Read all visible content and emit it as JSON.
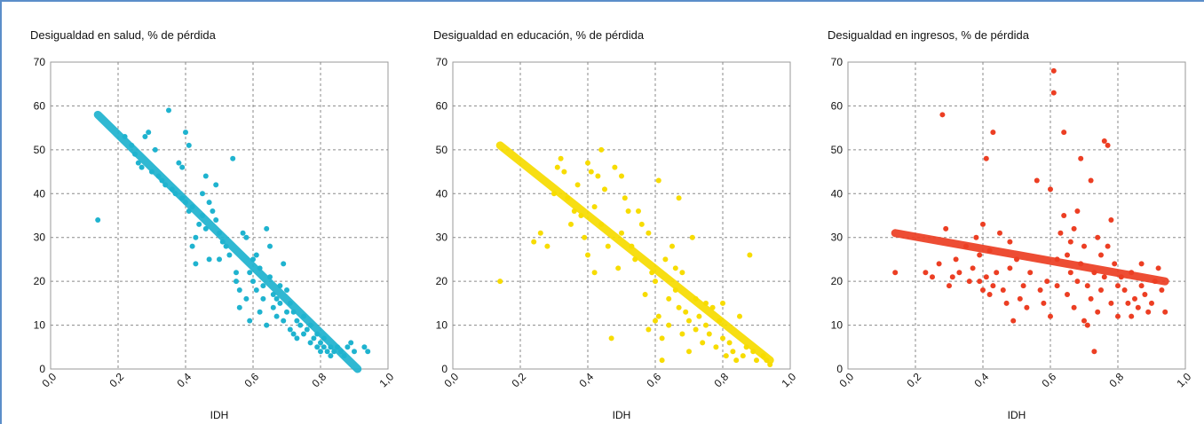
{
  "colors": {
    "health": "#1fb3cf",
    "education": "#f7dc00",
    "income": "#ec3e23",
    "grid": "#8a8a8a"
  },
  "chart_data": [
    {
      "type": "scatter",
      "title": "Desigualdad en salud, % de pérdida",
      "xlabel": "IDH",
      "ylabel": "",
      "xlim": [
        0,
        1
      ],
      "ylim": [
        0,
        70
      ],
      "xticks": [
        "0,0",
        "0,2",
        "0,4",
        "0,6",
        "0,8",
        "1,0"
      ],
      "yticks": [
        "0",
        "10",
        "20",
        "30",
        "40",
        "50",
        "60",
        "70"
      ],
      "color": "#1fb3cf",
      "trend": [
        [
          0.14,
          58
        ],
        [
          0.91,
          0
        ]
      ],
      "points": [
        [
          0.14,
          34
        ],
        [
          0.22,
          53
        ],
        [
          0.24,
          51
        ],
        [
          0.25,
          49
        ],
        [
          0.26,
          47
        ],
        [
          0.27,
          46
        ],
        [
          0.28,
          53
        ],
        [
          0.29,
          54
        ],
        [
          0.3,
          45
        ],
        [
          0.31,
          50
        ],
        [
          0.32,
          44
        ],
        [
          0.33,
          43
        ],
        [
          0.34,
          42
        ],
        [
          0.35,
          59
        ],
        [
          0.36,
          41
        ],
        [
          0.37,
          40
        ],
        [
          0.38,
          47
        ],
        [
          0.39,
          46
        ],
        [
          0.39,
          39
        ],
        [
          0.4,
          54
        ],
        [
          0.4,
          38
        ],
        [
          0.41,
          36
        ],
        [
          0.41,
          51
        ],
        [
          0.42,
          37
        ],
        [
          0.42,
          28
        ],
        [
          0.43,
          24
        ],
        [
          0.43,
          30
        ],
        [
          0.44,
          33
        ],
        [
          0.45,
          35
        ],
        [
          0.45,
          40
        ],
        [
          0.46,
          44
        ],
        [
          0.46,
          32
        ],
        [
          0.47,
          25
        ],
        [
          0.47,
          38
        ],
        [
          0.48,
          36
        ],
        [
          0.49,
          42
        ],
        [
          0.49,
          34
        ],
        [
          0.5,
          31
        ],
        [
          0.5,
          25
        ],
        [
          0.51,
          29
        ],
        [
          0.52,
          28
        ],
        [
          0.53,
          26
        ],
        [
          0.54,
          48
        ],
        [
          0.55,
          20
        ],
        [
          0.55,
          22
        ],
        [
          0.56,
          18
        ],
        [
          0.56,
          14
        ],
        [
          0.57,
          31
        ],
        [
          0.58,
          30
        ],
        [
          0.58,
          16
        ],
        [
          0.59,
          11
        ],
        [
          0.59,
          22
        ],
        [
          0.6,
          25
        ],
        [
          0.6,
          20
        ],
        [
          0.61,
          26
        ],
        [
          0.61,
          18
        ],
        [
          0.62,
          23
        ],
        [
          0.62,
          13
        ],
        [
          0.63,
          19
        ],
        [
          0.63,
          16
        ],
        [
          0.64,
          32
        ],
        [
          0.64,
          10
        ],
        [
          0.65,
          28
        ],
        [
          0.65,
          21
        ],
        [
          0.66,
          17
        ],
        [
          0.66,
          14
        ],
        [
          0.67,
          16
        ],
        [
          0.67,
          12
        ],
        [
          0.68,
          15
        ],
        [
          0.68,
          19
        ],
        [
          0.69,
          11
        ],
        [
          0.69,
          24
        ],
        [
          0.7,
          13
        ],
        [
          0.7,
          18
        ],
        [
          0.71,
          9
        ],
        [
          0.71,
          15
        ],
        [
          0.72,
          8
        ],
        [
          0.72,
          13
        ],
        [
          0.73,
          11
        ],
        [
          0.73,
          7
        ],
        [
          0.74,
          10
        ],
        [
          0.75,
          12
        ],
        [
          0.75,
          8
        ],
        [
          0.76,
          9
        ],
        [
          0.77,
          6
        ],
        [
          0.77,
          10
        ],
        [
          0.78,
          7
        ],
        [
          0.79,
          5
        ],
        [
          0.79,
          8
        ],
        [
          0.8,
          6
        ],
        [
          0.8,
          4
        ],
        [
          0.81,
          7
        ],
        [
          0.81,
          5
        ],
        [
          0.82,
          4
        ],
        [
          0.83,
          5
        ],
        [
          0.83,
          3
        ],
        [
          0.84,
          4
        ],
        [
          0.85,
          5
        ],
        [
          0.86,
          4
        ],
        [
          0.87,
          3
        ],
        [
          0.88,
          5
        ],
        [
          0.89,
          6
        ],
        [
          0.9,
          4
        ],
        [
          0.93,
          5
        ],
        [
          0.94,
          4
        ]
      ]
    },
    {
      "type": "scatter",
      "title": "Desigualdad en educación, % de pérdida",
      "xlabel": "IDH",
      "ylabel": "",
      "xlim": [
        0,
        1
      ],
      "ylim": [
        0,
        70
      ],
      "xticks": [
        "0,0",
        "0,2",
        "0,4",
        "0,6",
        "0,8",
        "1,0"
      ],
      "yticks": [
        "0",
        "10",
        "20",
        "30",
        "40",
        "50",
        "60",
        "70"
      ],
      "color": "#f7dc00",
      "trend": [
        [
          0.14,
          51
        ],
        [
          0.94,
          2
        ]
      ],
      "points": [
        [
          0.14,
          20
        ],
        [
          0.24,
          29
        ],
        [
          0.26,
          31
        ],
        [
          0.28,
          28
        ],
        [
          0.3,
          40
        ],
        [
          0.31,
          46
        ],
        [
          0.32,
          48
        ],
        [
          0.33,
          45
        ],
        [
          0.34,
          39
        ],
        [
          0.35,
          33
        ],
        [
          0.36,
          36
        ],
        [
          0.37,
          42
        ],
        [
          0.38,
          35
        ],
        [
          0.39,
          30
        ],
        [
          0.4,
          47
        ],
        [
          0.4,
          26
        ],
        [
          0.41,
          45
        ],
        [
          0.42,
          37
        ],
        [
          0.42,
          22
        ],
        [
          0.43,
          44
        ],
        [
          0.44,
          50
        ],
        [
          0.44,
          33
        ],
        [
          0.45,
          41
        ],
        [
          0.46,
          28
        ],
        [
          0.47,
          7
        ],
        [
          0.48,
          46
        ],
        [
          0.49,
          23
        ],
        [
          0.5,
          44
        ],
        [
          0.5,
          31
        ],
        [
          0.51,
          39
        ],
        [
          0.52,
          36
        ],
        [
          0.53,
          28
        ],
        [
          0.54,
          25
        ],
        [
          0.55,
          36
        ],
        [
          0.56,
          33
        ],
        [
          0.57,
          17
        ],
        [
          0.58,
          31
        ],
        [
          0.58,
          9
        ],
        [
          0.59,
          22
        ],
        [
          0.6,
          20
        ],
        [
          0.6,
          11
        ],
        [
          0.61,
          43
        ],
        [
          0.61,
          12
        ],
        [
          0.62,
          7
        ],
        [
          0.62,
          2
        ],
        [
          0.63,
          25
        ],
        [
          0.64,
          16
        ],
        [
          0.64,
          10
        ],
        [
          0.65,
          28
        ],
        [
          0.66,
          23
        ],
        [
          0.66,
          18
        ],
        [
          0.67,
          14
        ],
        [
          0.67,
          39
        ],
        [
          0.68,
          8
        ],
        [
          0.68,
          22
        ],
        [
          0.69,
          13
        ],
        [
          0.7,
          11
        ],
        [
          0.7,
          4
        ],
        [
          0.71,
          30
        ],
        [
          0.72,
          16
        ],
        [
          0.72,
          9
        ],
        [
          0.73,
          12
        ],
        [
          0.74,
          6
        ],
        [
          0.75,
          15
        ],
        [
          0.75,
          10
        ],
        [
          0.76,
          8
        ],
        [
          0.77,
          14
        ],
        [
          0.78,
          5
        ],
        [
          0.79,
          11
        ],
        [
          0.8,
          7
        ],
        [
          0.8,
          15
        ],
        [
          0.81,
          3
        ],
        [
          0.82,
          6
        ],
        [
          0.83,
          4
        ],
        [
          0.84,
          2
        ],
        [
          0.85,
          12
        ],
        [
          0.86,
          3
        ],
        [
          0.87,
          5
        ],
        [
          0.88,
          26
        ],
        [
          0.89,
          4
        ],
        [
          0.9,
          2
        ],
        [
          0.92,
          3
        ],
        [
          0.93,
          2
        ],
        [
          0.94,
          1
        ]
      ]
    },
    {
      "type": "scatter",
      "title": "Desigualdad en ingresos, % de pérdida",
      "xlabel": "IDH",
      "ylabel": "",
      "xlim": [
        0,
        1
      ],
      "ylim": [
        0,
        70
      ],
      "xticks": [
        "0,0",
        "0,2",
        "0,4",
        "0,6",
        "0,8",
        "1,0"
      ],
      "yticks": [
        "0",
        "10",
        "20",
        "30",
        "40",
        "50",
        "60",
        "70"
      ],
      "color": "#ec3e23",
      "trend": [
        [
          0.14,
          31
        ],
        [
          0.94,
          20
        ]
      ],
      "points": [
        [
          0.14,
          22
        ],
        [
          0.23,
          22
        ],
        [
          0.25,
          21
        ],
        [
          0.27,
          24
        ],
        [
          0.28,
          58
        ],
        [
          0.29,
          32
        ],
        [
          0.3,
          19
        ],
        [
          0.31,
          21
        ],
        [
          0.32,
          25
        ],
        [
          0.33,
          22
        ],
        [
          0.35,
          28
        ],
        [
          0.36,
          20
        ],
        [
          0.37,
          23
        ],
        [
          0.38,
          30
        ],
        [
          0.39,
          26
        ],
        [
          0.39,
          20
        ],
        [
          0.4,
          33
        ],
        [
          0.4,
          18
        ],
        [
          0.41,
          48
        ],
        [
          0.41,
          21
        ],
        [
          0.42,
          27
        ],
        [
          0.42,
          17
        ],
        [
          0.43,
          54
        ],
        [
          0.43,
          19
        ],
        [
          0.44,
          22
        ],
        [
          0.45,
          31
        ],
        [
          0.46,
          18
        ],
        [
          0.47,
          15
        ],
        [
          0.48,
          29
        ],
        [
          0.48,
          23
        ],
        [
          0.49,
          11
        ],
        [
          0.5,
          25
        ],
        [
          0.51,
          16
        ],
        [
          0.52,
          19
        ],
        [
          0.53,
          14
        ],
        [
          0.54,
          22
        ],
        [
          0.56,
          43
        ],
        [
          0.57,
          18
        ],
        [
          0.58,
          15
        ],
        [
          0.59,
          20
        ],
        [
          0.6,
          41
        ],
        [
          0.6,
          12
        ],
        [
          0.61,
          68
        ],
        [
          0.61,
          63
        ],
        [
          0.62,
          19
        ],
        [
          0.62,
          25
        ],
        [
          0.63,
          31
        ],
        [
          0.64,
          35
        ],
        [
          0.64,
          54
        ],
        [
          0.65,
          26
        ],
        [
          0.65,
          17
        ],
        [
          0.66,
          29
        ],
        [
          0.66,
          22
        ],
        [
          0.67,
          32
        ],
        [
          0.67,
          14
        ],
        [
          0.68,
          36
        ],
        [
          0.68,
          20
        ],
        [
          0.69,
          48
        ],
        [
          0.69,
          24
        ],
        [
          0.7,
          11
        ],
        [
          0.7,
          28
        ],
        [
          0.71,
          10
        ],
        [
          0.71,
          19
        ],
        [
          0.72,
          43
        ],
        [
          0.72,
          16
        ],
        [
          0.73,
          4
        ],
        [
          0.73,
          22
        ],
        [
          0.74,
          30
        ],
        [
          0.74,
          13
        ],
        [
          0.75,
          26
        ],
        [
          0.75,
          18
        ],
        [
          0.76,
          52
        ],
        [
          0.76,
          21
        ],
        [
          0.77,
          51
        ],
        [
          0.77,
          28
        ],
        [
          0.78,
          34
        ],
        [
          0.78,
          15
        ],
        [
          0.79,
          24
        ],
        [
          0.8,
          19
        ],
        [
          0.8,
          12
        ],
        [
          0.81,
          21
        ],
        [
          0.82,
          18
        ],
        [
          0.83,
          15
        ],
        [
          0.84,
          22
        ],
        [
          0.84,
          12
        ],
        [
          0.85,
          16
        ],
        [
          0.86,
          14
        ],
        [
          0.87,
          19
        ],
        [
          0.87,
          24
        ],
        [
          0.88,
          17
        ],
        [
          0.89,
          13
        ],
        [
          0.9,
          15
        ],
        [
          0.91,
          20
        ],
        [
          0.92,
          23
        ],
        [
          0.93,
          18
        ],
        [
          0.94,
          13
        ]
      ]
    }
  ]
}
